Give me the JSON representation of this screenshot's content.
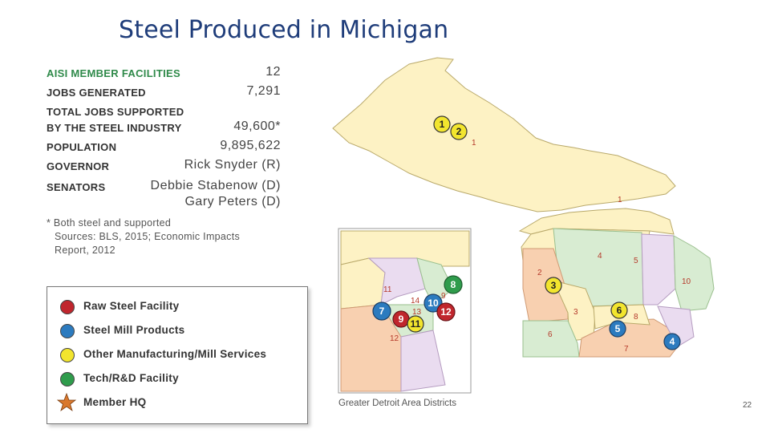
{
  "title": "Steel Produced in Michigan",
  "stats": [
    {
      "label": "AISI MEMBER FACILITIES",
      "value": "12"
    },
    {
      "label": "JOBS GENERATED",
      "value": "7,291"
    },
    {
      "label": "TOTAL JOBS SUPPORTED",
      "value": ""
    },
    {
      "label": "BY THE STEEL INDUSTRY",
      "value": "49,600*"
    },
    {
      "label": "POPULATION",
      "value": "9,895,622"
    },
    {
      "label": "GOVERNOR",
      "value": "Rick Snyder (R)"
    },
    {
      "label": "SENATORS",
      "value": "Debbie Stabenow (D)"
    },
    {
      "label": "",
      "value": "Gary Peters (D)"
    }
  ],
  "footnote": [
    "* Both steel and supported",
    "Sources: BLS, 2015; Economic Impacts",
    "Report, 2012"
  ],
  "legend": [
    {
      "label": "Raw Steel Facility",
      "color": "#c0262d",
      "icon": "red-circle"
    },
    {
      "label": "Steel Mill Products",
      "color": "#2c7bbf",
      "icon": "blue-circle"
    },
    {
      "label": "Other Manufacturing/Mill Services",
      "color": "#f2e52e",
      "icon": "yellow-circle"
    },
    {
      "label": "Tech/R&D Facility",
      "color": "#2f9c4c",
      "icon": "green-circle"
    },
    {
      "label": "Member HQ",
      "color": "#d9782d",
      "icon": "orange-star"
    }
  ],
  "map": {
    "inset_caption": "Greater Detroit Area Districts",
    "district_labels": [
      "1",
      "1",
      "2",
      "3",
      "4",
      "5",
      "6",
      "7",
      "8",
      "10"
    ],
    "inset_district_labels": [
      "11",
      "14",
      "9",
      "13",
      "12"
    ],
    "markers": [
      {
        "num": "1",
        "type": "yellow"
      },
      {
        "num": "2",
        "type": "yellow"
      },
      {
        "num": "3",
        "type": "yellow"
      },
      {
        "num": "6",
        "type": "yellow"
      },
      {
        "num": "5",
        "type": "blue"
      },
      {
        "num": "4",
        "type": "blue"
      }
    ],
    "inset_markers": [
      {
        "num": "8",
        "type": "green"
      },
      {
        "num": "7",
        "type": "blue"
      },
      {
        "num": "10",
        "type": "blue"
      },
      {
        "num": "9",
        "type": "red"
      },
      {
        "num": "11",
        "type": "yellow"
      },
      {
        "num": "12",
        "type": "red"
      }
    ]
  },
  "page_number": "22"
}
